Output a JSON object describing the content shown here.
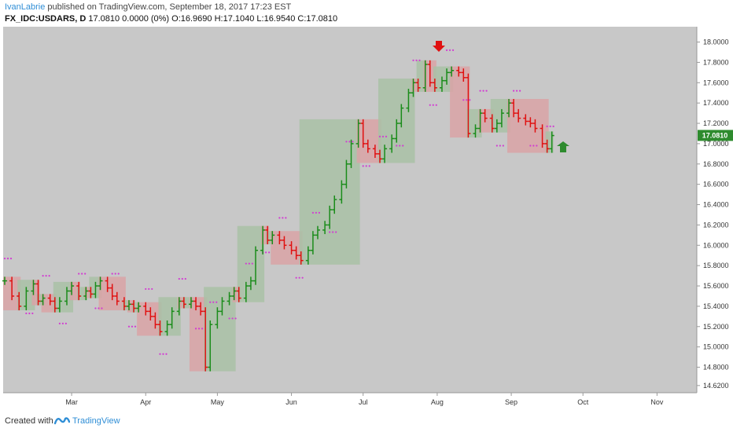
{
  "header": {
    "author": "IvanLabrie",
    "published_text": " published on TradingView.com, September 18, 2017 17:23 EST",
    "symbol": "FX_IDC:USDARS, D",
    "quote": " 17.0810 0.0000 (0%) O:16.9690 H:17.1040 L:16.9540 C:17.0810"
  },
  "footer": {
    "created_with": "Created with",
    "brand": "TradingView"
  },
  "colors": {
    "up": "#1a8c1a",
    "down": "#e01010",
    "price_badge": "#2e8b2e",
    "plot_bg": "#c8c8c8",
    "zone_up": "#a9c1a6",
    "zone_down": "#d9a3a6",
    "dot": "#d23cd2"
  },
  "chart_data": {
    "type": "candlestick",
    "symbol": "FX_IDC:USDARS",
    "interval": "D",
    "last_price_label": "17.0810",
    "y_ticks": [
      "18.0000",
      "17.8000",
      "17.6000",
      "17.4000",
      "17.2000",
      "17.0000",
      "16.8000",
      "16.6000",
      "16.4000",
      "16.2000",
      "16.0000",
      "15.8000",
      "15.6000",
      "15.4000",
      "15.2000",
      "15.0000",
      "14.8000",
      "14.6200"
    ],
    "x_ticks": [
      "Mar",
      "Apr",
      "May",
      "Jun",
      "Jul",
      "Aug",
      "Sep",
      "Oct",
      "Nov"
    ],
    "ylim": [
      14.58,
      18.12
    ],
    "x_tick_days": [
      28,
      59,
      89,
      120,
      150,
      181,
      212,
      242,
      273
    ],
    "xlim": [
      0,
      289
    ],
    "series": [
      {
        "d": 0,
        "close": 15.65
      },
      {
        "d": 3,
        "close": 15.5
      },
      {
        "d": 6,
        "close": 15.4
      },
      {
        "d": 9,
        "close": 15.55
      },
      {
        "d": 12,
        "close": 15.62
      },
      {
        "d": 14,
        "close": 15.45
      },
      {
        "d": 16,
        "close": 15.48
      },
      {
        "d": 19,
        "close": 15.45
      },
      {
        "d": 21,
        "close": 15.38
      },
      {
        "d": 23,
        "close": 15.45
      },
      {
        "d": 26,
        "close": 15.55
      },
      {
        "d": 28,
        "close": 15.6
      },
      {
        "d": 31,
        "close": 15.5
      },
      {
        "d": 34,
        "close": 15.55
      },
      {
        "d": 36,
        "close": 15.52
      },
      {
        "d": 38,
        "close": 15.6
      },
      {
        "d": 40,
        "close": 15.65
      },
      {
        "d": 43,
        "close": 15.58
      },
      {
        "d": 45,
        "close": 15.5
      },
      {
        "d": 47,
        "close": 15.45
      },
      {
        "d": 50,
        "close": 15.4
      },
      {
        "d": 52,
        "close": 15.42
      },
      {
        "d": 54,
        "close": 15.38
      },
      {
        "d": 56,
        "close": 15.4
      },
      {
        "d": 59,
        "close": 15.35
      },
      {
        "d": 61,
        "close": 15.3
      },
      {
        "d": 63,
        "close": 15.22
      },
      {
        "d": 65,
        "close": 15.15
      },
      {
        "d": 68,
        "close": 15.22
      },
      {
        "d": 70,
        "close": 15.35
      },
      {
        "d": 73,
        "close": 15.45
      },
      {
        "d": 75,
        "close": 15.42
      },
      {
        "d": 78,
        "close": 15.45
      },
      {
        "d": 80,
        "close": 15.4
      },
      {
        "d": 82,
        "close": 15.35
      },
      {
        "d": 84,
        "close": 14.8
      },
      {
        "d": 86,
        "close": 15.22
      },
      {
        "d": 89,
        "close": 15.35
      },
      {
        "d": 91,
        "close": 15.45
      },
      {
        "d": 94,
        "close": 15.5
      },
      {
        "d": 96,
        "close": 15.55
      },
      {
        "d": 98,
        "close": 15.48
      },
      {
        "d": 101,
        "close": 15.6
      },
      {
        "d": 103,
        "close": 15.65
      },
      {
        "d": 105,
        "close": 15.95
      },
      {
        "d": 108,
        "close": 16.15
      },
      {
        "d": 110,
        "close": 16.05
      },
      {
        "d": 112,
        "close": 16.1
      },
      {
        "d": 115,
        "close": 16.05
      },
      {
        "d": 117,
        "close": 16.0
      },
      {
        "d": 120,
        "close": 15.95
      },
      {
        "d": 122,
        "close": 15.9
      },
      {
        "d": 124,
        "close": 15.85
      },
      {
        "d": 127,
        "close": 15.95
      },
      {
        "d": 129,
        "close": 16.1
      },
      {
        "d": 131,
        "close": 16.15
      },
      {
        "d": 134,
        "close": 16.2
      },
      {
        "d": 136,
        "close": 16.35
      },
      {
        "d": 138,
        "close": 16.45
      },
      {
        "d": 141,
        "close": 16.6
      },
      {
        "d": 143,
        "close": 16.8
      },
      {
        "d": 145,
        "close": 17.0
      },
      {
        "d": 148,
        "close": 17.2
      },
      {
        "d": 150,
        "close": 17.0
      },
      {
        "d": 152,
        "close": 16.95
      },
      {
        "d": 155,
        "close": 16.9
      },
      {
        "d": 157,
        "close": 16.85
      },
      {
        "d": 159,
        "close": 16.95
      },
      {
        "d": 162,
        "close": 17.05
      },
      {
        "d": 164,
        "close": 17.2
      },
      {
        "d": 166,
        "close": 17.35
      },
      {
        "d": 169,
        "close": 17.5
      },
      {
        "d": 171,
        "close": 17.6
      },
      {
        "d": 173,
        "close": 17.55
      },
      {
        "d": 176,
        "close": 17.78
      },
      {
        "d": 178,
        "close": 17.6
      },
      {
        "d": 180,
        "close": 17.55
      },
      {
        "d": 183,
        "close": 17.62
      },
      {
        "d": 185,
        "close": 17.7
      },
      {
        "d": 187,
        "close": 17.72
      },
      {
        "d": 190,
        "close": 17.7
      },
      {
        "d": 192,
        "close": 17.65
      },
      {
        "d": 194,
        "close": 17.1
      },
      {
        "d": 197,
        "close": 17.15
      },
      {
        "d": 199,
        "close": 17.3
      },
      {
        "d": 201,
        "close": 17.25
      },
      {
        "d": 204,
        "close": 17.15
      },
      {
        "d": 206,
        "close": 17.2
      },
      {
        "d": 208,
        "close": 17.3
      },
      {
        "d": 211,
        "close": 17.4
      },
      {
        "d": 213,
        "close": 17.3
      },
      {
        "d": 215,
        "close": 17.25
      },
      {
        "d": 218,
        "close": 17.22
      },
      {
        "d": 220,
        "close": 17.2
      },
      {
        "d": 222,
        "close": 17.15
      },
      {
        "d": 225,
        "close": 17.0
      },
      {
        "d": 227,
        "close": 16.95
      },
      {
        "d": 229,
        "close": 17.08
      }
    ]
  }
}
